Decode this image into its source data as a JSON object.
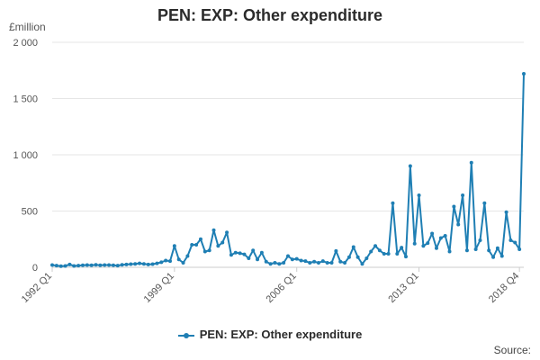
{
  "colors": {
    "series": "#1f7fb4",
    "grid": "#e6e6e6",
    "axis": "#cccccc"
  },
  "chart_data": {
    "type": "line",
    "title": "PEN: EXP: Other expenditure",
    "unit_label": "£million",
    "source_label": "Source:",
    "legend_position": "bottom",
    "grid": true,
    "ylim": [
      0,
      2000
    ],
    "y_ticks": [
      0,
      500,
      1000,
      1500,
      2000
    ],
    "y_tick_labels": [
      "0",
      "500",
      "1 000",
      "1 500",
      "2 000"
    ],
    "x_tick_labels": [
      "1992 Q1",
      "1999 Q1",
      "2006 Q1",
      "2013 Q1",
      "2018 Q4"
    ],
    "x_tick_index": [
      0,
      28,
      56,
      84,
      107
    ],
    "series": [
      {
        "name": "PEN: EXP: Other expenditure",
        "values": [
          20,
          15,
          10,
          12,
          25,
          12,
          15,
          18,
          20,
          18,
          22,
          18,
          20,
          20,
          18,
          15,
          22,
          25,
          28,
          30,
          35,
          30,
          25,
          28,
          35,
          45,
          60,
          55,
          190,
          70,
          40,
          100,
          200,
          200,
          250,
          140,
          150,
          330,
          190,
          220,
          310,
          110,
          130,
          125,
          115,
          80,
          150,
          70,
          130,
          50,
          30,
          40,
          30,
          40,
          100,
          70,
          75,
          60,
          55,
          40,
          50,
          40,
          55,
          40,
          40,
          145,
          50,
          40,
          90,
          180,
          90,
          30,
          80,
          140,
          190,
          150,
          120,
          120,
          570,
          120,
          175,
          95,
          900,
          210,
          640,
          190,
          215,
          300,
          170,
          260,
          280,
          140,
          540,
          380,
          640,
          150,
          930,
          160,
          240,
          570,
          150,
          90,
          170,
          100,
          490,
          240,
          220,
          160,
          1720
        ]
      }
    ]
  }
}
